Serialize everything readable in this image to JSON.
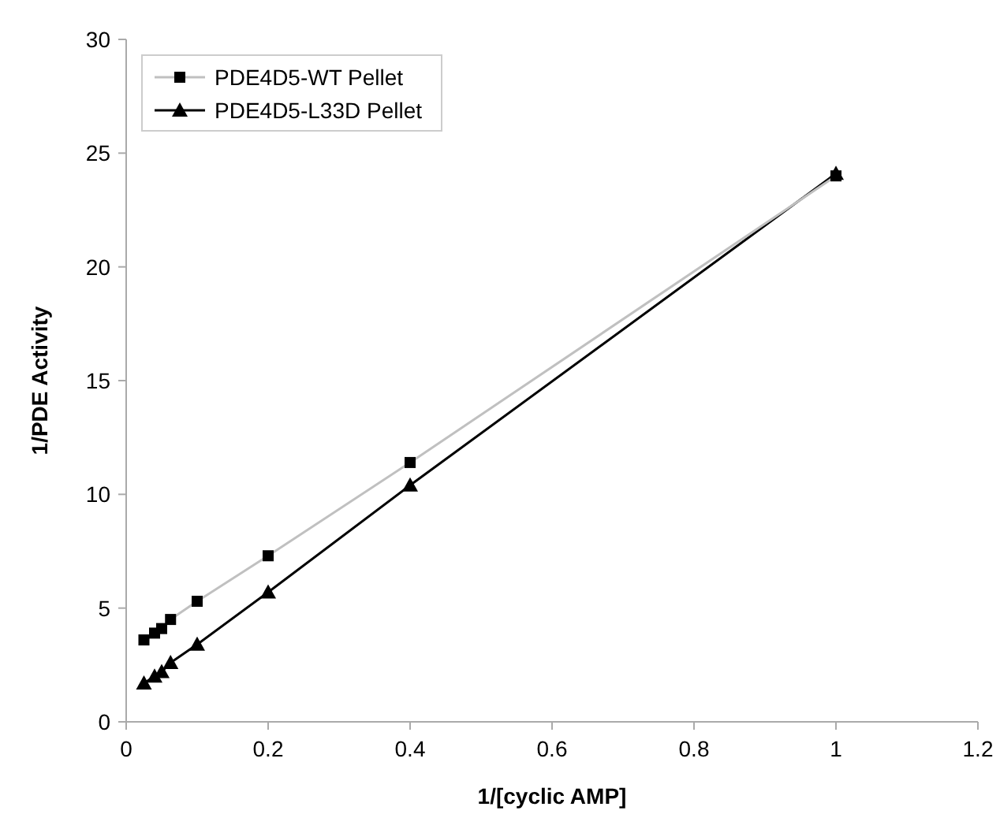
{
  "chart_data": {
    "type": "line",
    "xlabel": "1/[cyclic AMP]",
    "ylabel": "1/PDE Activity",
    "x": [
      0.025,
      0.04,
      0.05,
      0.0625,
      0.1,
      0.2,
      0.4,
      1
    ],
    "xlim": [
      0,
      1.2
    ],
    "xticks": [
      0,
      0.2,
      0.4,
      0.6,
      0.8,
      1,
      1.2
    ],
    "ylim": [
      0,
      30
    ],
    "yticks": [
      0,
      5,
      10,
      15,
      20,
      25,
      30
    ],
    "grid": false,
    "legend": "top left",
    "series": [
      {
        "name": "PDE4D5-WT Pellet",
        "color": "#c0c0c0",
        "marker": "square",
        "values": [
          3.6,
          3.9,
          4.1,
          4.5,
          5.3,
          7.3,
          11.4,
          24.0
        ]
      },
      {
        "name": "PDE4D5-L33D Pellet",
        "color": "#000000",
        "marker": "triangle",
        "values": [
          1.7,
          2.0,
          2.2,
          2.6,
          3.4,
          5.7,
          10.4,
          24.1
        ]
      }
    ]
  }
}
